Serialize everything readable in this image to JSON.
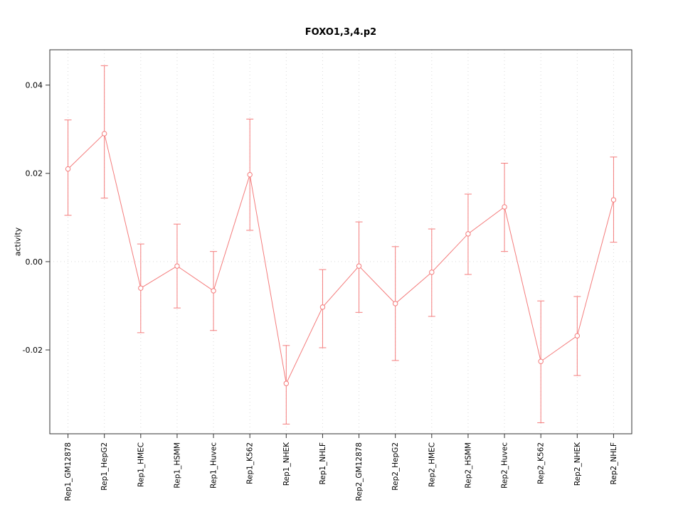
{
  "chart_data": {
    "type": "line",
    "title": "FOXO1,3,4.p2",
    "xlabel": "",
    "ylabel": "activity",
    "ylim": [
      -0.039,
      0.048
    ],
    "yticks": [
      -0.02,
      0.0,
      0.02,
      0.04
    ],
    "grid": "dotted horizontal line at y=0 and faint dotted vertical line at each category",
    "legend_position": "none",
    "series_color": "#f47c7c",
    "categories": [
      "Rep1_GM12878",
      "Rep1_HepG2",
      "Rep1_HMEC",
      "Rep1_HSMM",
      "Rep1_Huvec",
      "Rep1_K562",
      "Rep1_NHEK",
      "Rep1_NHLF",
      "Rep2_GM12878",
      "Rep2_HepG2",
      "Rep2_HMEC",
      "Rep2_HSMM",
      "Rep2_Huvec",
      "Rep2_K562",
      "Rep2_NHEK",
      "Rep2_NHLF"
    ],
    "series": [
      {
        "name": "activity",
        "values": [
          0.021,
          0.029,
          -0.006,
          -0.001,
          -0.0066,
          0.0197,
          -0.0276,
          -0.0103,
          -0.001,
          -0.0095,
          -0.0024,
          0.0063,
          0.0124,
          -0.0226,
          -0.0168,
          0.014
        ],
        "ci_low": [
          0.0105,
          0.0144,
          -0.0161,
          -0.0105,
          -0.0156,
          0.0071,
          -0.0368,
          -0.0195,
          -0.0115,
          -0.0224,
          -0.0124,
          -0.0029,
          0.0023,
          -0.0365,
          -0.0258,
          0.0044
        ],
        "ci_high": [
          0.0321,
          0.0444,
          0.004,
          0.0085,
          0.0023,
          0.0323,
          -0.019,
          -0.0018,
          0.009,
          0.0034,
          0.0074,
          0.0153,
          0.0223,
          -0.0089,
          -0.0079,
          0.0237
        ]
      }
    ]
  }
}
